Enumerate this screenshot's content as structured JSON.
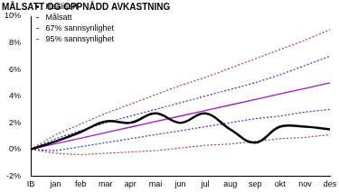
{
  "chart_data": {
    "type": "line",
    "title": "MÅLSATT OG OPPNÅDD AVKASTNING",
    "categories": [
      "IB",
      "jan",
      "feb",
      "mar",
      "apr",
      "mai",
      "jun",
      "jul",
      "aug",
      "sep",
      "okt",
      "nov",
      "des"
    ],
    "series": [
      {
        "name": "Realisert",
        "color": "#000000",
        "line_style": "solid",
        "values": [
          0,
          0.6,
          1.3,
          2.1,
          2.0,
          2.7,
          2.0,
          2.7,
          1.5,
          0.5,
          1.7,
          1.7,
          1.5
        ]
      },
      {
        "name": "Målsatt",
        "color": "#a020c0",
        "line_style": "solid",
        "values": [
          0,
          0.42,
          0.83,
          1.25,
          1.67,
          2.08,
          2.5,
          2.92,
          3.33,
          3.75,
          4.17,
          4.58,
          5.0
        ]
      },
      {
        "name": "67% sannsynlighet",
        "color": "#1f3fd0",
        "line_style": "dotted",
        "values": [
          0,
          0.8,
          1.4,
          2.0,
          2.5,
          3.0,
          3.5,
          4.0,
          4.5,
          5.0,
          5.6,
          6.3,
          7.0
        ]
      },
      {
        "name": "95% sannsynlighet",
        "color": "#b0403a",
        "line_style": "dotted",
        "values": [
          0,
          1.1,
          1.9,
          2.7,
          3.4,
          4.1,
          4.8,
          5.4,
          6.1,
          6.8,
          7.5,
          8.2,
          9.0
        ]
      },
      {
        "name": "67% sannsynlighet",
        "color": "#1f3fd0",
        "line_style": "dotted",
        "values": [
          0,
          -0.1,
          0.2,
          0.5,
          0.8,
          1.1,
          1.4,
          1.7,
          2.0,
          2.3,
          2.5,
          2.8,
          3.0
        ]
      },
      {
        "name": "95% sannsynlighet",
        "color": "#b0403a",
        "line_style": "dotted",
        "values": [
          0,
          -0.3,
          -0.4,
          -0.3,
          -0.2,
          -0.1,
          0.1,
          0.3,
          0.4,
          0.6,
          0.8,
          0.9,
          1.1
        ]
      }
    ],
    "ylim": [
      -2,
      10
    ],
    "yticks": [
      {
        "value": -2,
        "label": "-2%"
      },
      {
        "value": 0,
        "label": "0%"
      },
      {
        "value": 2,
        "label": "2%"
      },
      {
        "value": 4,
        "label": "4%"
      },
      {
        "value": 6,
        "label": "6%"
      },
      {
        "value": 8,
        "label": "8%"
      },
      {
        "value": 10,
        "label": "10%"
      }
    ],
    "grid": false,
    "legend": "upper left",
    "marker": "none"
  }
}
